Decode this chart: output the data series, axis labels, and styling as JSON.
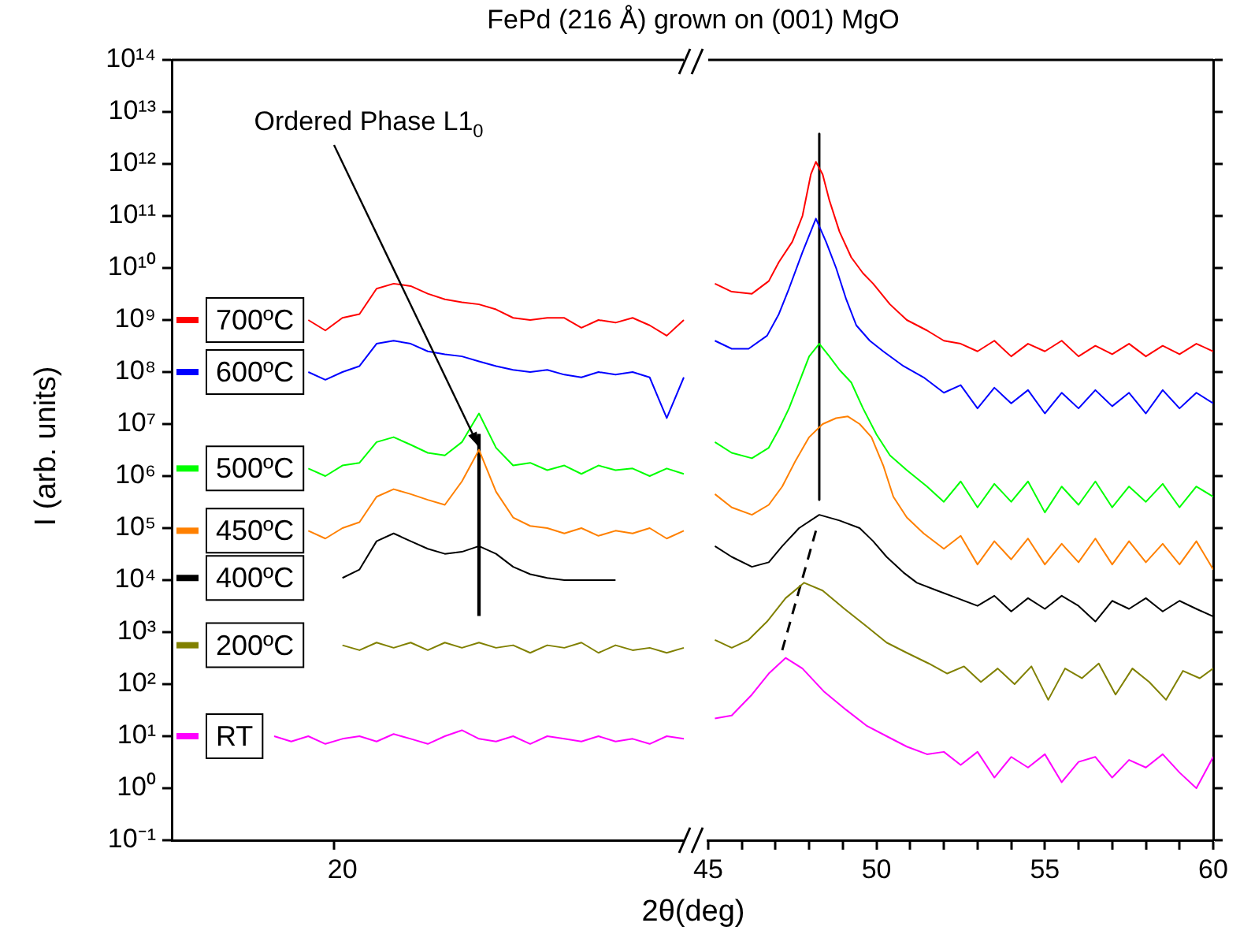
{
  "chart_data": [
    {
      "type": "line",
      "title": "FePd (216 Å) grown on (001) MgO",
      "xlabel": "2θ(deg)",
      "ylabel": "I (arb. units)",
      "log": true,
      "grid": false,
      "categories": [
        null,
        null,
        null,
        null,
        null,
        null,
        null,
        null,
        null,
        null,
        "20",
        null,
        null,
        null,
        null,
        null,
        null,
        null,
        null,
        null,
        null,
        null,
        null,
        null,
        null,
        null,
        null,
        null,
        null,
        null,
        null
      ],
      "ylim": [
        0.1,
        100000000000000.0
      ],
      "yticks": [
        {
          "value": 0.1,
          "label": "10⁻¹"
        },
        {
          "value": 1,
          "label": "10⁰"
        },
        {
          "value": 10,
          "label": "10¹"
        },
        {
          "value": 100,
          "label": "10²"
        },
        {
          "value": 1000,
          "label": "10³"
        },
        {
          "value": 10000,
          "label": "10⁴"
        },
        {
          "value": 100000,
          "label": "10⁵"
        },
        {
          "value": 1000000.0,
          "label": "10⁶"
        },
        {
          "value": 10000000.0,
          "label": "10⁷"
        },
        {
          "value": 100000000.0,
          "label": "10⁸"
        },
        {
          "value": 1000000000.0,
          "label": "10⁹"
        },
        {
          "value": 10000000000.0,
          "label": "10¹⁰"
        },
        {
          "value": 100000000000.0,
          "label": "10¹¹"
        },
        {
          "value": 1000000000000.0,
          "label": "10¹²"
        },
        {
          "value": 10000000000000.0,
          "label": "10¹³"
        },
        {
          "value": 100000000000000.0,
          "label": "10¹⁴"
        }
      ],
      "annotations": [
        "Ordered Phase L1$_{0}$"
      ],
      "legend": "left",
      "series": [
        {
          "name": "700ºC",
          "color": "#ff0000",
          "values": [
            null,
            null,
            null,
            null,
            null,
            null,
            null,
            null,
            1000000000.0,
            630000000.0,
            1100000000.0,
            1300000000.0,
            4000000000.0,
            5000000000.0,
            4500000000.0,
            3200000000.0,
            2500000000.0,
            2200000000.0,
            2000000000.0,
            1600000000.0,
            1100000000.0,
            1000000000.0,
            1100000000.0,
            1100000000.0,
            710000000.0,
            1000000000.0,
            890000000.0,
            1100000000.0,
            790000000.0,
            500000000.0,
            1000000000.0
          ]
        },
        {
          "name": "600ºC",
          "color": "#0000ff",
          "values": [
            null,
            null,
            null,
            null,
            null,
            null,
            null,
            null,
            100000000.0,
            71000000.0,
            100000000.0,
            130000000.0,
            350000000.0,
            400000000.0,
            350000000.0,
            250000000.0,
            220000000.0,
            200000000.0,
            160000000.0,
            130000000.0,
            110000000.0,
            100000000.0,
            110000000.0,
            89000000.0,
            79000000.0,
            100000000.0,
            89000000.0,
            100000000.0,
            79000000.0,
            13000000.0,
            79000000.0
          ]
        },
        {
          "name": "500ºC",
          "color": "#00ff00",
          "values": [
            null,
            null,
            null,
            null,
            null,
            null,
            null,
            null,
            1400000.0,
            1000000.0,
            1600000.0,
            1800000.0,
            4500000.0,
            5600000.0,
            4000000.0,
            2800000.0,
            2500000.0,
            4500000.0,
            16000000.0,
            3500000.0,
            1600000.0,
            1800000.0,
            1300000.0,
            1600000.0,
            1100000.0,
            1600000.0,
            1300000.0,
            1400000.0,
            1000000.0,
            1400000.0,
            1100000.0
          ]
        },
        {
          "name": "450ºC",
          "color": "#ff8000",
          "values": [
            null,
            null,
            null,
            null,
            null,
            null,
            null,
            null,
            89000.0,
            63000.0,
            100000.0,
            130000.0,
            400000.0,
            560000.0,
            450000.0,
            350000.0,
            280000.0,
            790000.0,
            3200000.0,
            500000.0,
            160000.0,
            110000.0,
            100000.0,
            79000.0,
            100000.0,
            71000.0,
            89000.0,
            79000.0,
            100000.0,
            63000.0,
            89000.0
          ]
        },
        {
          "name": "400ºC",
          "color": "#000000",
          "values": [
            null,
            null,
            null,
            null,
            null,
            null,
            null,
            null,
            null,
            null,
            11000.0,
            16000.0,
            56000.0,
            79000.0,
            56000.0,
            40000.0,
            32000.0,
            35000.0,
            45000.0,
            32000.0,
            18000.0,
            13000.0,
            11000.0,
            10000.0,
            10000.0,
            10000.0,
            10000.0,
            null,
            null,
            null,
            null
          ]
        },
        {
          "name": "200ºC",
          "color": "#808000",
          "values": [
            null,
            null,
            null,
            null,
            null,
            null,
            null,
            null,
            null,
            null,
            560,
            450,
            630,
            500,
            630,
            450,
            630,
            500,
            630,
            500,
            560,
            400,
            560,
            500,
            630,
            400,
            560,
            450,
            500,
            400,
            500
          ]
        },
        {
          "name": "RT",
          "color": "#ff00ff",
          "values": [
            null,
            null,
            null,
            null,
            null,
            null,
            10,
            7.9,
            10,
            7.1,
            8.9,
            10,
            7.9,
            11,
            8.9,
            7.1,
            10,
            13,
            8.9,
            7.9,
            10,
            7.1,
            10,
            8.9,
            7.9,
            10,
            7.9,
            8.9,
            7.1,
            10,
            8.9
          ]
        },
        {
          "type": "bar",
          "color": "#000000",
          "values": [
            null,
            null,
            null,
            null,
            null,
            null,
            null,
            null,
            null,
            null,
            null,
            null,
            null,
            null,
            null,
            null,
            null,
            null,
            6300000.0,
            null,
            null,
            null,
            null,
            null,
            null,
            null,
            null,
            null,
            null,
            null,
            null
          ],
          "base": [
            null,
            null,
            null,
            null,
            null,
            null,
            null,
            null,
            null,
            null,
            null,
            null,
            null,
            null,
            null,
            null,
            null,
            null,
            2100,
            null,
            null,
            null,
            null,
            null,
            null,
            null,
            null,
            null,
            null,
            null,
            null
          ]
        }
      ]
    },
    {
      "type": "line",
      "log": true,
      "grid": false,
      "tick_labels": "x",
      "xlim": [
        45,
        60
      ],
      "xticks": [
        45,
        {
          "value": 46,
          "label": null
        },
        {
          "value": 47,
          "label": null
        },
        {
          "value": 48,
          "label": null
        },
        {
          "value": 49,
          "label": null
        },
        50,
        {
          "value": 51,
          "label": null
        },
        {
          "value": 52,
          "label": null
        },
        {
          "value": 53,
          "label": null
        },
        {
          "value": 54,
          "label": null
        },
        55,
        {
          "value": 56,
          "label": null
        },
        {
          "value": 57,
          "label": null
        },
        {
          "value": 58,
          "label": null
        },
        {
          "value": 59,
          "label": null
        },
        60
      ],
      "ylim": [
        0.1,
        100000000000000.0
      ],
      "yticks": [
        0.1,
        1,
        10,
        100,
        1000,
        10000,
        100000,
        1000000.0,
        10000000.0,
        100000000.0,
        1000000000.0,
        10000000000.0,
        100000000000.0,
        1000000000000.0,
        10000000000000.0,
        100000000000000.0
      ],
      "series": [
        {
          "color": "#ff0000",
          "x": [
            45.2,
            45.7,
            46.3,
            46.8,
            47.1,
            47.5,
            47.8,
            48.05,
            48.2,
            48.4,
            48.6,
            48.9,
            49.25,
            49.6,
            49.9,
            50.4,
            50.9,
            51.5,
            52.0,
            52.5,
            53.0,
            53.5,
            54.0,
            54.5,
            55.0,
            55.5,
            56.0,
            56.5,
            57.0,
            57.5,
            58.0,
            58.5,
            59.0,
            59.5,
            60.0
          ],
          "values": [
            5000000000.0,
            3500000000.0,
            3200000000.0,
            5600000000.0,
            13000000000.0,
            32000000000.0,
            100000000000.0,
            630000000000.0,
            1100000000000.0,
            630000000000.0,
            200000000000.0,
            50000000000.0,
            16000000000.0,
            7900000000.0,
            5000000000.0,
            2000000000.0,
            1000000000.0,
            630000000.0,
            400000000.0,
            350000000.0,
            250000000.0,
            400000000.0,
            200000000.0,
            350000000.0,
            250000000.0,
            400000000.0,
            200000000.0,
            320000000.0,
            220000000.0,
            350000000.0,
            200000000.0,
            320000000.0,
            220000000.0,
            350000000.0,
            250000000.0
          ]
        },
        {
          "color": "#0000ff",
          "x": [
            45.2,
            45.7,
            46.2,
            46.75,
            47.1,
            47.4,
            47.8,
            48.2,
            48.5,
            48.8,
            49.1,
            49.4,
            49.8,
            50.2,
            50.8,
            51.4,
            52.0,
            52.5,
            53.0,
            53.5,
            54.0,
            54.5,
            55.0,
            55.5,
            56.0,
            56.5,
            57.0,
            57.5,
            58.0,
            58.5,
            59.0,
            59.5,
            60.0
          ],
          "values": [
            400000000.0,
            280000000.0,
            280000000.0,
            500000000.0,
            1300000000.0,
            4000000000.0,
            20000000000.0,
            89000000000.0,
            32000000000.0,
            10000000000.0,
            2500000000.0,
            790000000.0,
            400000000.0,
            250000000.0,
            130000000.0,
            79000000.0,
            40000000.0,
            56000000.0,
            20000000.0,
            50000000.0,
            25000000.0,
            45000000.0,
            16000000.0,
            40000000.0,
            20000000.0,
            45000000.0,
            22000000.0,
            40000000.0,
            16000000.0,
            45000000.0,
            20000000.0,
            40000000.0,
            25000000.0
          ]
        },
        {
          "color": "#00ff00",
          "x": [
            45.2,
            45.7,
            46.3,
            46.8,
            47.1,
            47.4,
            47.7,
            48.0,
            48.3,
            48.6,
            48.9,
            49.25,
            49.6,
            50.0,
            50.4,
            50.9,
            51.5,
            52.0,
            52.5,
            53.0,
            53.5,
            54.0,
            54.5,
            55.0,
            55.5,
            56.0,
            56.5,
            57.0,
            57.5,
            58.0,
            58.5,
            59.0,
            59.5,
            60.0
          ],
          "values": [
            4500000.0,
            2800000.0,
            2200000.0,
            3500000.0,
            7900000.0,
            20000000.0,
            63000000.0,
            200000000.0,
            350000000.0,
            200000000.0,
            110000000.0,
            63000000.0,
            20000000.0,
            6300000.0,
            2500000.0,
            1300000.0,
            630000.0,
            320000.0,
            790000.0,
            250000.0,
            710000.0,
            320000.0,
            790000.0,
            200000.0,
            630000.0,
            280000.0,
            790000.0,
            250000.0,
            630000.0,
            320000.0,
            710000.0,
            250000.0,
            630000.0,
            400000.0
          ]
        },
        {
          "color": "#ff8000",
          "x": [
            45.2,
            45.7,
            46.3,
            46.8,
            47.2,
            47.6,
            48.0,
            48.4,
            48.8,
            49.15,
            49.5,
            49.85,
            50.2,
            50.5,
            50.9,
            51.4,
            52.0,
            52.5,
            53.0,
            53.5,
            54.0,
            54.5,
            55.0,
            55.5,
            56.0,
            56.5,
            57.0,
            57.5,
            58.0,
            58.5,
            59.0,
            59.5,
            60.0
          ],
          "values": [
            450000.0,
            250000.0,
            180000.0,
            280000.0,
            630000.0,
            2000000.0,
            5600000.0,
            10000000.0,
            13000000.0,
            14000000.0,
            10000000.0,
            5600000.0,
            1600000.0,
            400000.0,
            160000.0,
            79000.0,
            40000.0,
            71000.0,
            20000.0,
            56000.0,
            25000.0,
            63000.0,
            20000.0,
            50000.0,
            22000.0,
            63000.0,
            20000.0,
            56000.0,
            22000.0,
            50000.0,
            20000.0,
            56000.0,
            16000.0
          ]
        },
        {
          "color": "#000000",
          "x": [
            45.2,
            45.7,
            46.3,
            46.8,
            47.2,
            47.7,
            48.3,
            48.9,
            49.5,
            49.9,
            50.3,
            50.8,
            51.2,
            51.8,
            52.4,
            53.0,
            53.5,
            54.0,
            54.5,
            55.0,
            55.5,
            56.0,
            56.5,
            57.0,
            57.5,
            58.0,
            58.5,
            59.0,
            59.5,
            60.0
          ],
          "values": [
            45000.0,
            28000.0,
            18000.0,
            22000.0,
            45000.0,
            100000.0,
            180000.0,
            140000.0,
            100000.0,
            56000.0,
            28000.0,
            14000.0,
            8900.0,
            6300.0,
            4500.0,
            3200.0,
            5000.0,
            2500.0,
            4500.0,
            2800.0,
            5000.0,
            3200.0,
            1600.0,
            4000.0,
            2800.0,
            4500.0,
            2500.0,
            4000.0,
            2800.0,
            2000.0
          ]
        },
        {
          "color": "#808000",
          "x": [
            45.2,
            45.7,
            46.2,
            46.75,
            47.3,
            47.85,
            48.4,
            49.05,
            49.7,
            50.3,
            50.9,
            51.55,
            52.1,
            52.6,
            53.1,
            53.6,
            54.1,
            54.6,
            55.1,
            55.6,
            56.1,
            56.6,
            57.1,
            57.6,
            58.1,
            58.6,
            59.1,
            59.6,
            60.0
          ],
          "values": [
            710,
            500,
            710,
            1600,
            4500,
            8900,
            6300,
            2800,
            1300,
            630,
            400,
            250,
            160,
            220,
            110,
            200,
            100,
            220,
            50,
            200,
            130,
            250,
            63,
            200,
            110,
            50,
            180,
            130,
            200
          ]
        },
        {
          "color": "#ff00ff",
          "x": [
            45.2,
            45.7,
            46.3,
            46.8,
            47.3,
            47.8,
            48.45,
            49.1,
            49.7,
            50.3,
            50.9,
            51.5,
            52.0,
            52.5,
            53.0,
            53.5,
            54.0,
            54.5,
            55.0,
            55.5,
            56.0,
            56.5,
            57.0,
            57.5,
            58.0,
            58.5,
            59.0,
            59.5,
            60.0
          ],
          "values": [
            22,
            25,
            63,
            160,
            320,
            200,
            71,
            32,
            16,
            10,
            6.3,
            4.5,
            5.0,
            2.8,
            5.0,
            1.6,
            4.0,
            2.5,
            4.5,
            1.3,
            3.2,
            4.0,
            1.6,
            3.5,
            2.5,
            4.5,
            2.0,
            1.0,
            4.0
          ]
        },
        {
          "color": "#000000",
          "x": [
            48.3,
            48.3
          ],
          "values": [
            3800000000000.0,
            350000.0
          ]
        },
        {
          "color": "#000000",
          "line_style": "dashed",
          "x": [
            48.2,
            47.2
          ],
          "values": [
            89000.0,
            450
          ]
        }
      ]
    }
  ]
}
